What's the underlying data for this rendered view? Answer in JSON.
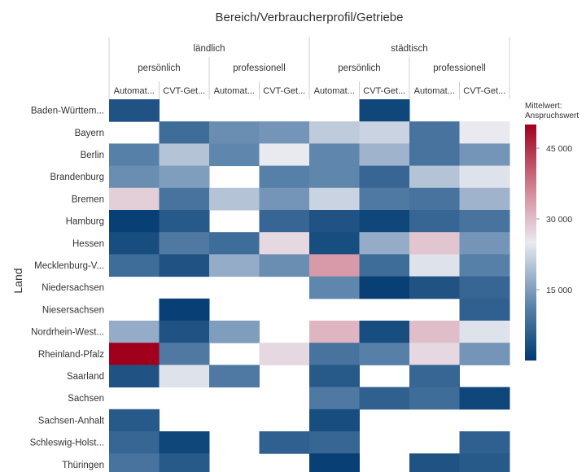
{
  "chart_data": {
    "type": "heatmap",
    "title": "Bereich/Verbraucherprofil/Getriebe",
    "ylabel": "Land",
    "header_levels": {
      "bereich": [
        {
          "label": "ländlich",
          "span": 4
        },
        {
          "label": "städtisch",
          "span": 4
        }
      ],
      "verbraucherprofil": [
        {
          "label": "persönlich",
          "span": 2
        },
        {
          "label": "professionell",
          "span": 2
        },
        {
          "label": "persönlich",
          "span": 2
        },
        {
          "label": "professionell",
          "span": 2
        }
      ],
      "getriebe": [
        "Automat...",
        "CVT-Get...",
        "Automat...",
        "CVT-Get...",
        "Automat...",
        "CVT-Get...",
        "Automat...",
        "CVT-Get..."
      ]
    },
    "rows": [
      "Baden-Württem...",
      "Bayern",
      "Berlin",
      "Brandenburg",
      "Bremen",
      "Hamburg",
      "Hessen",
      "Mecklenburg-V...",
      "Niedersachsen",
      "Niesersachsen",
      "Nordrhein-West...",
      "Rheinland-Pfalz",
      "Saarland",
      "Sachsen",
      "Sachsen-Anhalt",
      "Schleswig-Holst...",
      "Thüringen"
    ],
    "values": [
      [
        4000,
        null,
        null,
        null,
        null,
        2000,
        null,
        null
      ],
      [
        null,
        8000,
        13000,
        14000,
        21000,
        22000,
        9000,
        25000
      ],
      [
        11000,
        20000,
        12000,
        25000,
        12000,
        18000,
        9000,
        14000
      ],
      [
        13000,
        15000,
        null,
        11000,
        12000,
        7000,
        20000,
        24000
      ],
      [
        28000,
        9000,
        20000,
        14000,
        22000,
        10000,
        9000,
        18000
      ],
      [
        1000,
        5000,
        null,
        7000,
        4000,
        2000,
        7000,
        9000
      ],
      [
        3000,
        10000,
        8000,
        27000,
        3000,
        17000,
        29000,
        14000
      ],
      [
        8000,
        4000,
        17000,
        13000,
        34000,
        8000,
        24000,
        11000
      ],
      [
        null,
        null,
        null,
        null,
        12000,
        1000,
        4000,
        7000
      ],
      [
        null,
        1000,
        null,
        null,
        null,
        null,
        null,
        6000
      ],
      [
        17000,
        4000,
        15000,
        null,
        31000,
        3000,
        30000,
        24000
      ],
      [
        50000,
        10000,
        null,
        27000,
        9000,
        11000,
        27000,
        14000
      ],
      [
        4000,
        24000,
        10000,
        null,
        5000,
        null,
        7000,
        null
      ],
      [
        null,
        null,
        null,
        null,
        10000,
        6000,
        8000,
        2000
      ],
      [
        5000,
        null,
        null,
        null,
        3000,
        null,
        null,
        null
      ],
      [
        7000,
        2000,
        null,
        6000,
        7000,
        null,
        null,
        6000
      ],
      [
        9000,
        5000,
        null,
        null,
        1000,
        null,
        4000,
        5000
      ]
    ],
    "color_scale": {
      "title_line1": "Mittelwert:",
      "title_line2": "Anspruchswert",
      "domain": [
        0,
        50000
      ],
      "ticks": [
        15000,
        30000,
        45000
      ],
      "tick_labels": [
        "15 000",
        "30 000",
        "45 000"
      ],
      "stops": [
        {
          "value": 0,
          "color": "#003a70"
        },
        {
          "value": 12000,
          "color": "#5f86ad"
        },
        {
          "value": 25000,
          "color": "#e9eaf0"
        },
        {
          "value": 34000,
          "color": "#d89aa9"
        },
        {
          "value": 50000,
          "color": "#a0001c"
        }
      ]
    }
  }
}
